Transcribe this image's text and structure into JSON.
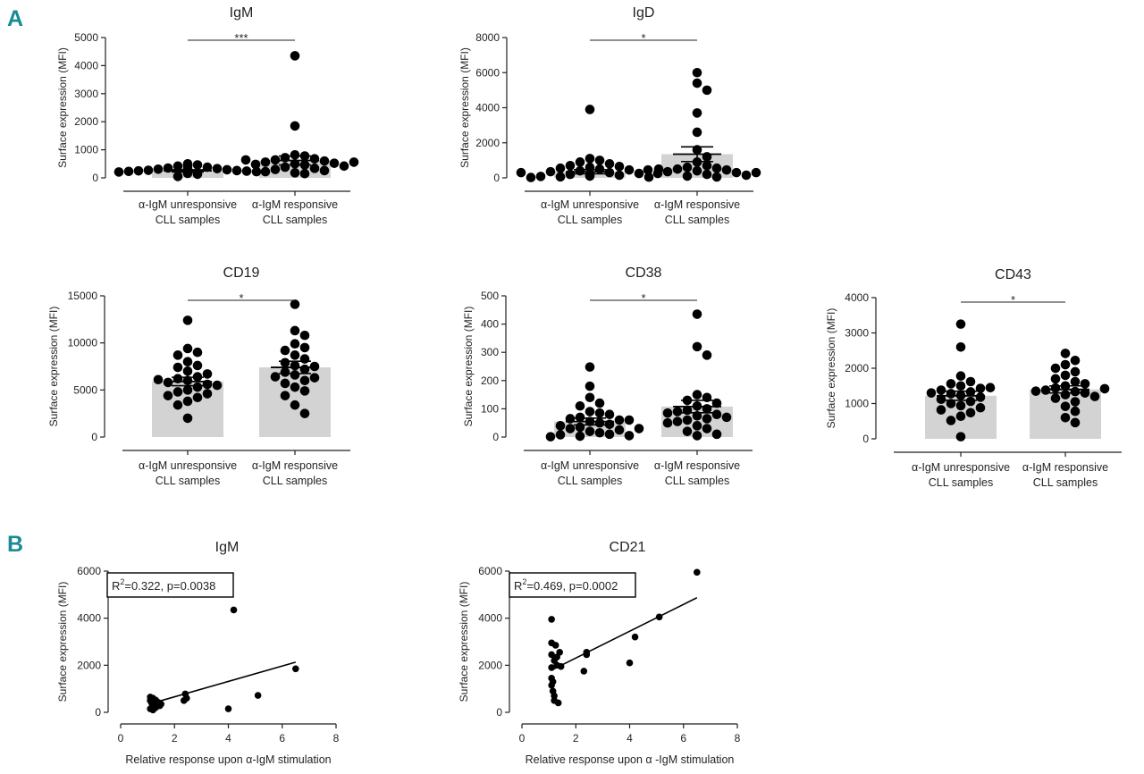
{
  "panel_labels": [
    "A",
    "B"
  ],
  "chart_data": [
    {
      "type": "bar",
      "title": "IgM",
      "ylabel": "Surface expression (MFI)",
      "ylim": [
        0,
        5000
      ],
      "yticks": [
        0,
        1000,
        2000,
        3000,
        4000,
        5000
      ],
      "categories": [
        "α-IgM unresponsive\nCLL samples",
        "α-IgM responsive\nCLL samples"
      ],
      "means": [
        250,
        620
      ],
      "sem": [
        40,
        160
      ],
      "significance": "***",
      "points": [
        [
          500,
          460,
          420,
          380,
          350,
          330,
          310,
          290,
          270,
          260,
          250,
          240,
          230,
          220,
          210,
          200,
          190,
          180,
          160,
          130,
          50,
          320,
          280,
          240,
          420
        ],
        [
          4350,
          1850,
          820,
          780,
          720,
          680,
          640,
          600,
          560,
          520,
          500,
          480,
          460,
          420,
          380,
          340,
          300,
          260,
          220,
          180,
          150,
          640,
          560
        ]
      ]
    },
    {
      "type": "bar",
      "title": "IgD",
      "ylabel": "Surface expression (MFI)",
      "ylim": [
        0,
        8000
      ],
      "yticks": [
        0,
        2000,
        4000,
        6000,
        8000
      ],
      "categories": [
        "α-IgM unresponsive\nCLL samples",
        "α-IgM responsive\nCLL samples"
      ],
      "means": [
        350,
        1350
      ],
      "sem": [
        120,
        420
      ],
      "significance": "*",
      "points": [
        [
          3900,
          1100,
          1000,
          900,
          800,
          700,
          650,
          600,
          550,
          500,
          450,
          400,
          350,
          300,
          250,
          200,
          150,
          100,
          80,
          60,
          40,
          20,
          500,
          300,
          200
        ],
        [
          6000,
          5400,
          5000,
          3700,
          2600,
          1600,
          1200,
          900,
          700,
          600,
          550,
          500,
          450,
          400,
          350,
          300,
          250,
          200,
          150,
          100,
          50,
          450,
          300
        ]
      ]
    },
    {
      "type": "bar",
      "title": "CD19",
      "ylabel": "Surface expression (MFI)",
      "ylim": [
        0,
        15000
      ],
      "yticks": [
        0,
        5000,
        10000,
        15000
      ],
      "categories": [
        "α-IgM unresponsive\nCLL samples",
        "α-IgM responsive\nCLL samples"
      ],
      "means": [
        5900,
        7400
      ],
      "sem": [
        450,
        650
      ],
      "significance": "*",
      "points": [
        [
          12400,
          9400,
          9000,
          8700,
          8000,
          7600,
          7400,
          7000,
          6700,
          6400,
          6200,
          6000,
          5800,
          5600,
          5300,
          5000,
          4800,
          4600,
          4400,
          4200,
          3800,
          3400,
          2000,
          5500,
          6100
        ],
        [
          14100,
          11300,
          10800,
          9900,
          9500,
          9200,
          8700,
          8300,
          7900,
          7600,
          7200,
          6900,
          6600,
          6300,
          6000,
          5700,
          5300,
          4900,
          4400,
          3400,
          2500,
          7500,
          6400
        ]
      ]
    },
    {
      "type": "bar",
      "title": "CD38",
      "ylabel": "Surface expression (MFI)",
      "ylim": [
        0,
        500
      ],
      "yticks": [
        0,
        100,
        200,
        300,
        400,
        500
      ],
      "categories": [
        "α-IgM unresponsive\nCLL samples",
        "α-IgM responsive\nCLL samples"
      ],
      "means": [
        55,
        108
      ],
      "sem": [
        12,
        22
      ],
      "significance": "*",
      "points": [
        [
          248,
          180,
          140,
          120,
          110,
          90,
          85,
          80,
          70,
          65,
          60,
          55,
          50,
          45,
          40,
          35,
          30,
          25,
          20,
          15,
          10,
          8,
          5,
          3,
          1,
          60,
          30
        ],
        [
          435,
          320,
          290,
          150,
          140,
          130,
          120,
          110,
          100,
          95,
          90,
          80,
          75,
          70,
          65,
          60,
          55,
          50,
          40,
          30,
          20,
          10,
          5,
          85
        ]
      ]
    },
    {
      "type": "bar",
      "title": "CD43",
      "ylabel": "Surface expression (MFI)",
      "ylim": [
        0,
        4000
      ],
      "yticks": [
        0,
        1000,
        2000,
        3000,
        4000
      ],
      "categories": [
        "α-IgM unresponsive\nCLL samples",
        "α-IgM responsive\nCLL samples"
      ],
      "means": [
        1220,
        1400
      ],
      "sem": [
        130,
        100
      ],
      "significance": "*",
      "points": [
        [
          3250,
          2600,
          1780,
          1620,
          1560,
          1500,
          1430,
          1380,
          1330,
          1280,
          1230,
          1180,
          1120,
          1060,
          1000,
          940,
          880,
          820,
          740,
          640,
          520,
          60,
          1450,
          1300
        ],
        [
          2420,
          2220,
          2100,
          2000,
          1900,
          1800,
          1700,
          1620,
          1560,
          1500,
          1440,
          1380,
          1340,
          1300,
          1250,
          1200,
          1150,
          1050,
          920,
          780,
          600,
          460,
          1350,
          1420
        ]
      ]
    },
    {
      "type": "scatter",
      "title": "IgM",
      "xlabel": "Relative response upon α-IgM stimulation",
      "ylabel": "Surface expression (MFI)",
      "xlim": [
        0,
        8
      ],
      "ylim": [
        0,
        6000
      ],
      "xticks": [
        0,
        2,
        4,
        6,
        8
      ],
      "yticks": [
        0,
        2000,
        4000,
        6000
      ],
      "annotation": {
        "r2_label": "R",
        "r2_sup": "2",
        "rest": "=0.322, p=0.0038"
      },
      "fit": {
        "x": [
          1.3,
          6.5
        ],
        "y": [
          430,
          2130
        ]
      },
      "x": [
        1.1,
        1.1,
        1.15,
        1.2,
        1.2,
        1.25,
        1.3,
        1.3,
        1.35,
        1.4,
        1.45,
        1.5,
        1.1,
        1.2,
        1.3,
        2.35,
        2.4,
        2.45,
        4.0,
        4.2,
        5.1,
        6.5,
        1.2,
        1.4
      ],
      "y": [
        650,
        500,
        400,
        350,
        300,
        250,
        200,
        450,
        380,
        320,
        280,
        350,
        150,
        100,
        520,
        500,
        780,
        600,
        150,
        4350,
        720,
        1850,
        600,
        420
      ]
    },
    {
      "type": "scatter",
      "title": "CD21",
      "xlabel": "Relative response upon α -IgM stimulation",
      "ylabel": "Surface expression (MFI)",
      "xlim": [
        0,
        8
      ],
      "ylim": [
        0,
        6000
      ],
      "xticks": [
        0,
        2,
        4,
        6,
        8
      ],
      "yticks": [
        0,
        2000,
        4000,
        6000
      ],
      "annotation": {
        "r2_label": "R",
        "r2_sup": "2",
        "rest": "=0.469, p=0.0002"
      },
      "fit": {
        "x": [
          1.2,
          6.5
        ],
        "y": [
          1850,
          4870
        ]
      },
      "x": [
        1.1,
        1.1,
        1.1,
        1.1,
        1.1,
        1.1,
        1.15,
        1.2,
        1.2,
        1.25,
        1.3,
        1.3,
        1.35,
        1.4,
        1.45,
        1.2,
        2.3,
        2.4,
        2.4,
        4.0,
        4.2,
        5.1,
        6.5,
        1.15
      ],
      "y": [
        3950,
        2950,
        2450,
        1900,
        1450,
        1150,
        900,
        700,
        500,
        2850,
        2350,
        2000,
        400,
        2550,
        1950,
        2200,
        1750,
        2450,
        2550,
        2100,
        3200,
        4050,
        5950,
        1300
      ]
    }
  ]
}
